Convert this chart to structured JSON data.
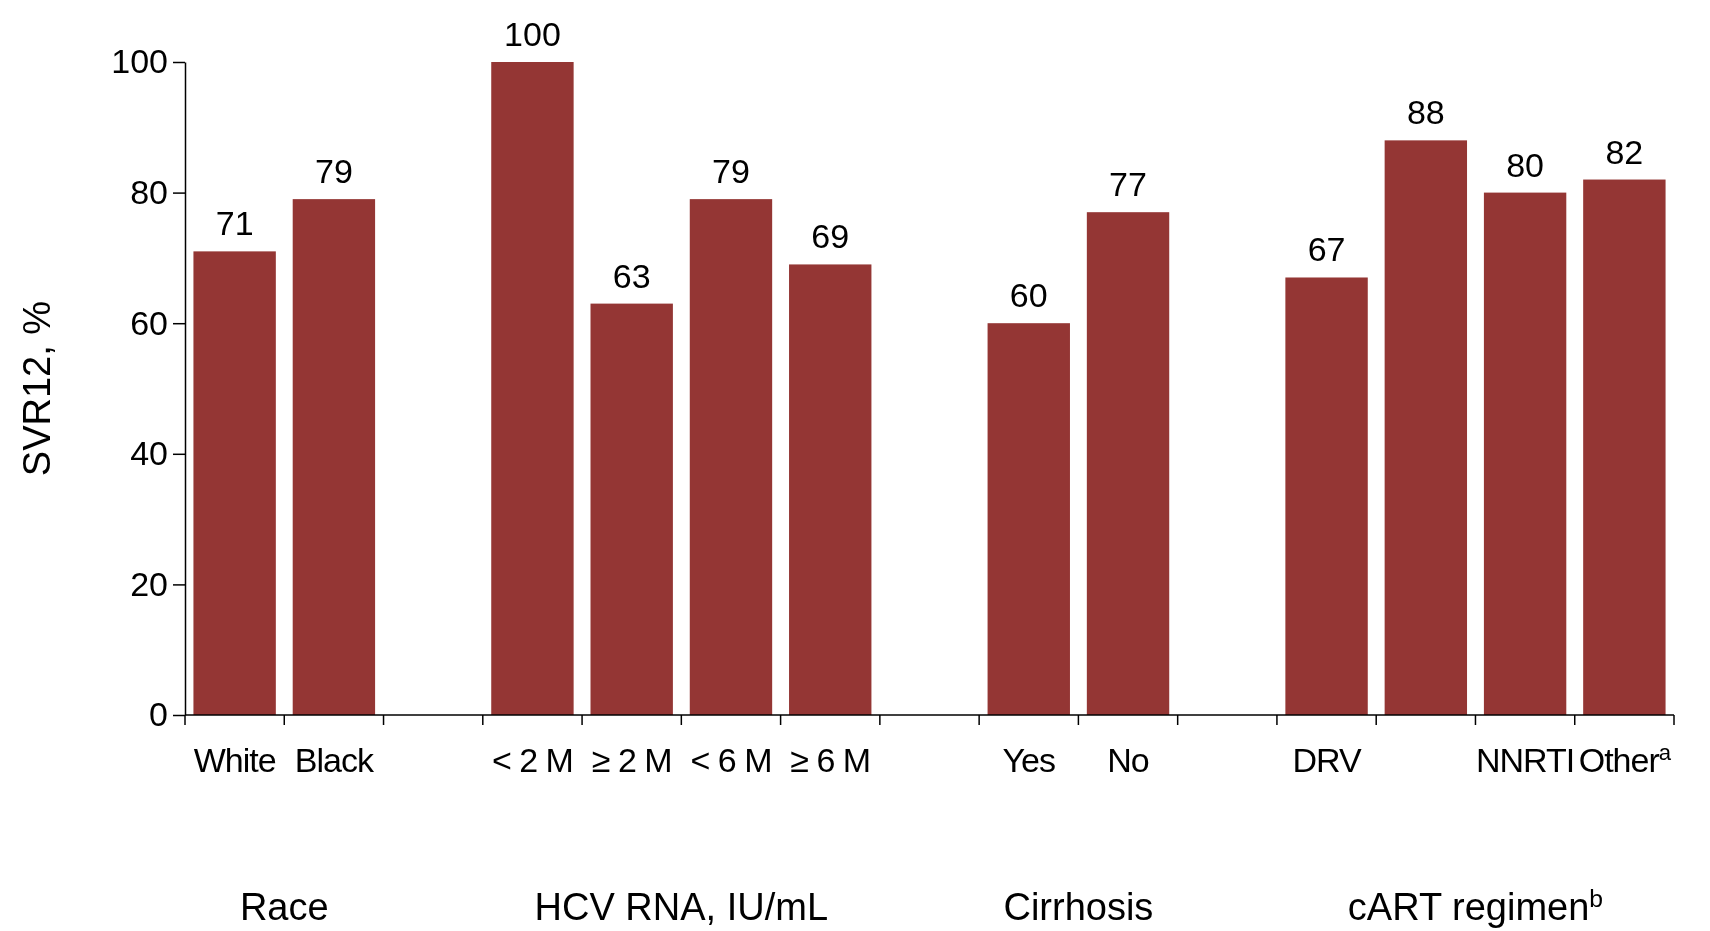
{
  "chart_data": {
    "type": "bar",
    "ylabel": "SVR12, %",
    "categories": [
      "White",
      "Black",
      null,
      "< 2 M",
      "≥ 2 M",
      "< 6 M",
      "≥ 6 M",
      null,
      "Yes",
      "No",
      null,
      "DRV",
      null,
      "NNRTI",
      "Other$^{a}$"
    ],
    "values": [
      71,
      79,
      null,
      100,
      63,
      79,
      69,
      null,
      60,
      77,
      null,
      67,
      88,
      80,
      82
    ],
    "color": "#943634",
    "ylim": [
      0,
      100
    ],
    "yticks": [
      0,
      20,
      40,
      60,
      80,
      100
    ],
    "data_labels": true,
    "annotations": [
      "Race",
      "HCV RNA, IU/mL",
      "Cirrhosis",
      "cART regimen$^{b}$"
    ]
  }
}
